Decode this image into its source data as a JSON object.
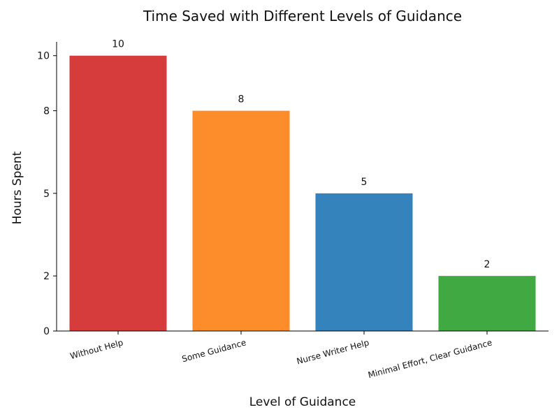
{
  "chart_data": {
    "type": "bar",
    "title": "Time Saved with Different Levels of Guidance",
    "xlabel": "Level of Guidance",
    "ylabel": "Hours Spent",
    "categories": [
      "Without Help",
      "Some Guidance",
      "Nurse Writer Help",
      "Minimal Effort, Clear Guidance"
    ],
    "values": [
      10,
      8,
      5,
      2
    ],
    "data_labels": [
      "10",
      "8",
      "5",
      "2"
    ],
    "colors": [
      "#d63c3c",
      "#fd8c2a",
      "#3583bd",
      "#41a942"
    ],
    "yticks": [
      0,
      2,
      5,
      8,
      10
    ],
    "ytick_labels": [
      "0",
      "2",
      "5",
      "8",
      "10"
    ],
    "ylim": [
      0,
      10.5
    ],
    "grid": false,
    "legend": "none"
  }
}
